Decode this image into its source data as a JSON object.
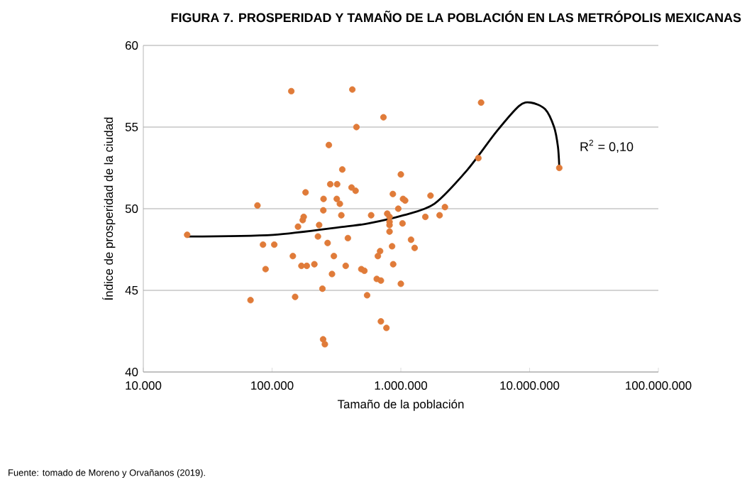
{
  "chart_data": {
    "type": "scatter",
    "title": "FIGURA 7. PROSPERIDAD Y TAMAÑO DE LA POBLACIÓN EN LAS METRÓPOLIS MEXICANAS",
    "xlabel": "Tamaño de la población",
    "ylabel": "Índice de prosperidad de la ciudad",
    "log": "x",
    "grid": "y",
    "marker": "circle",
    "xlim": [
      10000,
      100000000
    ],
    "ylim": [
      40,
      60
    ],
    "xticks": [
      {
        "value": 10000,
        "label": "10.000"
      },
      {
        "value": 100000,
        "label": "100.000"
      },
      {
        "value": 1000000,
        "label": "1.000.000"
      },
      {
        "value": 10000000,
        "label": "10.000.000"
      },
      {
        "value": 100000000,
        "label": "100.000.000"
      }
    ],
    "yticks": [
      40,
      45,
      50,
      55,
      60
    ],
    "annotations": [
      "R$^{2}$ = 0,10",
      "Fuente: tomado de Moreno y Orvañanos (2019)."
    ],
    "series": [
      {
        "color": "#e07b39",
        "x": [
          21900,
          77000,
          68000,
          85000,
          104000,
          89000,
          141000,
          145000,
          151000,
          159000,
          173000,
          176000,
          182000,
          169000,
          186000,
          213000,
          232000,
          227000,
          246000,
          250000,
          251000,
          249000,
          257000,
          276000,
          283000,
          270000,
          302000,
          292000,
          320000,
          318000,
          336000,
          345000,
          351000,
          388000,
          373000,
          420000,
          452000,
          414000,
          445000,
          493000,
          521000,
          547000,
          588000,
          663000,
          690000,
          650000,
          700000,
          700000,
          773000,
          733000,
          784000,
          817000,
          867000,
          855000,
          872000,
          817000,
          817000,
          817000,
          955000,
          1000000,
          1040000,
          1080000,
          1030000,
          1000000,
          1200000,
          1280000,
          1550000,
          1700000,
          2000000,
          2200000,
          4000000,
          4200000,
          17000000
        ],
        "values": [
          48.4,
          50.2,
          44.4,
          47.8,
          47.8,
          46.3,
          57.2,
          47.1,
          44.6,
          48.9,
          49.3,
          49.5,
          51.0,
          46.5,
          46.5,
          46.6,
          49.0,
          48.3,
          45.1,
          49.9,
          50.6,
          42.0,
          41.7,
          53.9,
          51.5,
          47.9,
          47.1,
          46.0,
          51.5,
          50.6,
          50.3,
          49.6,
          52.4,
          48.2,
          46.5,
          57.3,
          55.0,
          51.3,
          51.1,
          46.3,
          46.2,
          44.7,
          49.6,
          47.1,
          47.4,
          45.7,
          45.6,
          43.1,
          42.7,
          55.6,
          49.7,
          49.2,
          50.9,
          47.7,
          46.6,
          49.5,
          49.0,
          48.6,
          50.0,
          52.1,
          50.6,
          50.5,
          49.1,
          45.4,
          48.1,
          47.6,
          49.5,
          50.8,
          49.6,
          50.1,
          53.1,
          56.5,
          52.5
        ]
      },
      {
        "type": "line",
        "color": "#000000",
        "marker": "none",
        "x": [
          21900,
          102000,
          363000,
          562000,
          1050000,
          1820000,
          3300000,
          5500000,
          8300000,
          10200000,
          13200000,
          15500000,
          16600000,
          17000000
        ],
        "values": [
          48.3,
          48.4,
          48.9,
          49.1,
          49.6,
          50.3,
          52.4,
          54.7,
          56.3,
          56.5,
          56.1,
          55.0,
          53.8,
          52.6
        ]
      }
    ]
  }
}
